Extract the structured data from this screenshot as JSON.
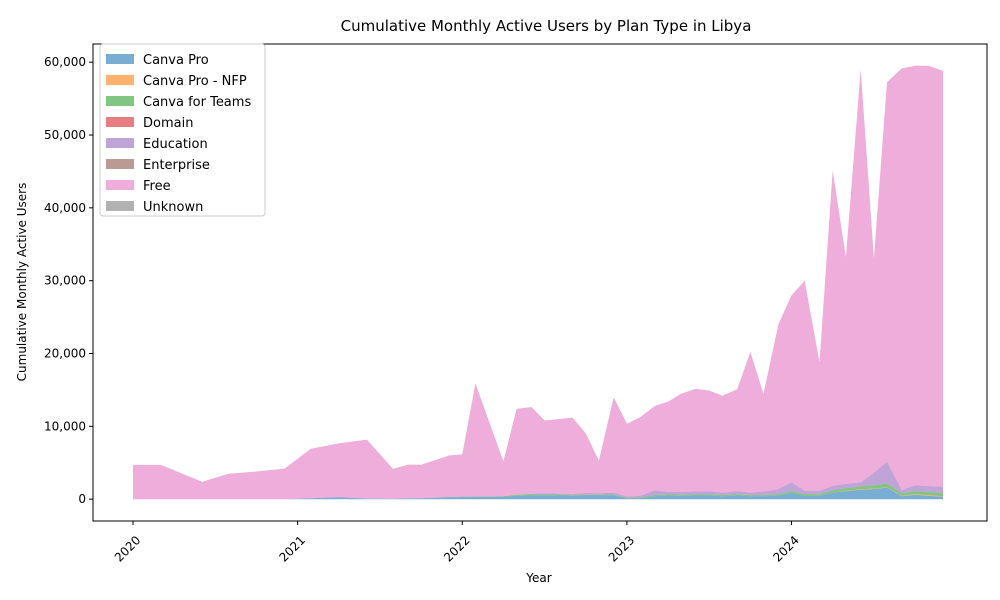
{
  "chart_data": {
    "type": "area",
    "stacked": true,
    "title": "Cumulative Monthly Active Users by Plan Type in Libya",
    "xlabel": "Year",
    "ylabel": "Cumulative Monthly Active Users",
    "xlim": [
      2020.0,
      2024.92
    ],
    "ylim": [
      -3000,
      62500
    ],
    "x_ticks": [
      {
        "label": "2020",
        "value": 2020
      },
      {
        "label": "2021",
        "value": 2021
      },
      {
        "label": "2022",
        "value": 2022
      },
      {
        "label": "2023",
        "value": 2023
      },
      {
        "label": "2024",
        "value": 2024
      }
    ],
    "y_ticks": [
      {
        "label": "0",
        "value": 0
      },
      {
        "label": "10,000",
        "value": 10000
      },
      {
        "label": "20,000",
        "value": 20000
      },
      {
        "label": "30,000",
        "value": 30000
      },
      {
        "label": "40,000",
        "value": 40000
      },
      {
        "label": "50,000",
        "value": 50000
      },
      {
        "label": "60,000",
        "value": 60000
      }
    ],
    "legend_position": "top-left",
    "x": [
      2020.0,
      2020.17,
      2020.42,
      2020.58,
      2020.75,
      2020.92,
      2021.08,
      2021.25,
      2021.42,
      2021.58,
      2021.67,
      2021.75,
      2021.92,
      2022.0,
      2022.08,
      2022.25,
      2022.33,
      2022.42,
      2022.5,
      2022.67,
      2022.75,
      2022.83,
      2022.92,
      2023.0,
      2023.08,
      2023.17,
      2023.25,
      2023.33,
      2023.42,
      2023.5,
      2023.58,
      2023.67,
      2023.75,
      2023.83,
      2023.92,
      2024.0,
      2024.08,
      2024.17,
      2024.25,
      2024.33,
      2024.42,
      2024.5,
      2024.58,
      2024.67,
      2024.75,
      2024.83,
      2024.92
    ],
    "series": [
      {
        "name": "Canva Pro",
        "color": "#1f77b4",
        "values": [
          0,
          0,
          0,
          0,
          0,
          0,
          120,
          250,
          80,
          60,
          100,
          120,
          250,
          300,
          300,
          350,
          450,
          500,
          550,
          450,
          500,
          500,
          550,
          100,
          150,
          400,
          500,
          450,
          500,
          500,
          400,
          500,
          400,
          400,
          500,
          800,
          450,
          450,
          900,
          1100,
          1300,
          1400,
          1600,
          400,
          600,
          450,
          350
        ]
      },
      {
        "name": "Canva Pro - NFP",
        "color": "#ff7f0e",
        "values": [
          0,
          0,
          0,
          0,
          0,
          0,
          0,
          0,
          0,
          0,
          0,
          0,
          0,
          0,
          0,
          0,
          0,
          0,
          0,
          0,
          0,
          0,
          0,
          0,
          0,
          0,
          0,
          0,
          0,
          0,
          0,
          0,
          0,
          0,
          0,
          0,
          0,
          0,
          0,
          50,
          50,
          50,
          50,
          50,
          100,
          100,
          50
        ]
      },
      {
        "name": "Canva for Teams",
        "color": "#2ca02c",
        "values": [
          0,
          0,
          0,
          0,
          0,
          0,
          0,
          0,
          0,
          0,
          0,
          0,
          50,
          50,
          50,
          50,
          150,
          150,
          150,
          100,
          100,
          100,
          100,
          100,
          100,
          150,
          150,
          150,
          150,
          150,
          150,
          150,
          150,
          150,
          200,
          300,
          250,
          250,
          300,
          350,
          400,
          450,
          500,
          350,
          400,
          450,
          400
        ]
      },
      {
        "name": "Domain",
        "color": "#d62728",
        "values": [
          0,
          0,
          0,
          0,
          0,
          0,
          0,
          0,
          0,
          0,
          0,
          0,
          0,
          0,
          0,
          0,
          0,
          0,
          0,
          0,
          0,
          0,
          0,
          0,
          0,
          0,
          0,
          0,
          0,
          0,
          0,
          0,
          0,
          0,
          0,
          0,
          0,
          0,
          0,
          0,
          0,
          0,
          0,
          0,
          0,
          0,
          0
        ]
      },
      {
        "name": "Education",
        "color": "#9467bd",
        "values": [
          0,
          0,
          0,
          0,
          0,
          0,
          0,
          0,
          0,
          0,
          0,
          0,
          0,
          0,
          0,
          0,
          0,
          100,
          100,
          150,
          250,
          200,
          250,
          150,
          200,
          650,
          350,
          400,
          400,
          450,
          350,
          450,
          350,
          500,
          700,
          1200,
          450,
          450,
          650,
          600,
          550,
          1700,
          3000,
          450,
          800,
          800,
          900
        ]
      },
      {
        "name": "Enterprise",
        "color": "#8c564b",
        "values": [
          0,
          0,
          0,
          0,
          0,
          0,
          0,
          0,
          0,
          0,
          0,
          0,
          0,
          0,
          0,
          0,
          0,
          0,
          0,
          0,
          0,
          0,
          0,
          0,
          0,
          0,
          0,
          0,
          0,
          0,
          0,
          0,
          0,
          0,
          0,
          0,
          0,
          0,
          0,
          0,
          0,
          0,
          0,
          0,
          0,
          0,
          0
        ]
      },
      {
        "name": "Free",
        "color": "#e377c2",
        "values": [
          4700,
          4700,
          2400,
          3500,
          3800,
          4200,
          6800,
          7400,
          8100,
          4100,
          4650,
          4600,
          5700,
          5800,
          15550,
          4800,
          11800,
          11900,
          10000,
          10500,
          8200,
          4500,
          13100,
          10000,
          10800,
          11600,
          12400,
          13500,
          14100,
          13800,
          13300,
          14000,
          19300,
          13400,
          22600,
          25700,
          28850,
          17650,
          43300,
          31100,
          56750,
          29400,
          52100,
          57900,
          57600,
          57700,
          57100
        ]
      },
      {
        "name": "Unknown",
        "color": "#7f7f7f",
        "values": [
          0,
          0,
          0,
          0,
          0,
          0,
          0,
          0,
          0,
          0,
          0,
          0,
          0,
          0,
          0,
          0,
          0,
          0,
          0,
          0,
          0,
          0,
          0,
          0,
          0,
          0,
          0,
          0,
          0,
          0,
          0,
          0,
          0,
          0,
          0,
          0,
          0,
          0,
          0,
          0,
          0,
          0,
          0,
          0,
          0,
          0,
          0
        ]
      }
    ]
  }
}
